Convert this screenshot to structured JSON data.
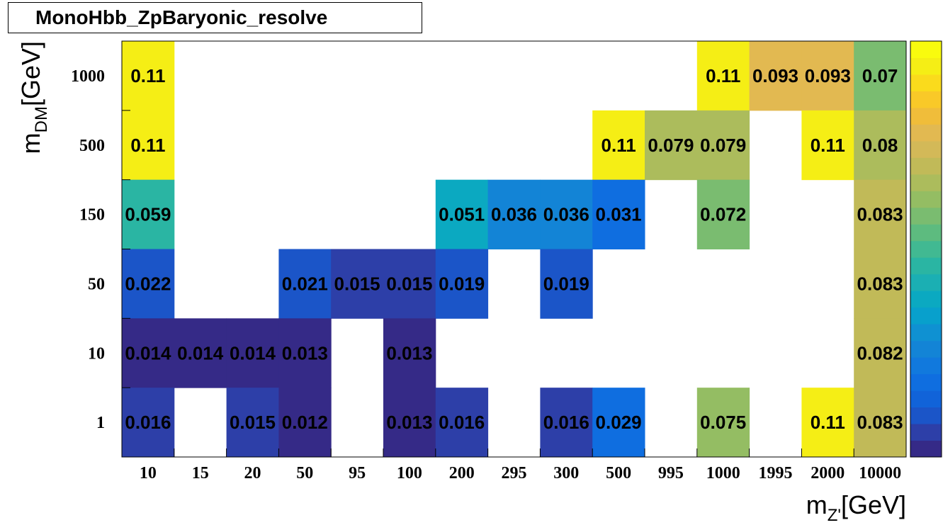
{
  "title": "MonoHbb_ZpBaryonic_resolve",
  "chart_data": {
    "type": "heatmap",
    "title": "MonoHbb_ZpBaryonic_resolve",
    "xlabel": {
      "main": "m",
      "sub": "Z'",
      "unit": "[GeV]"
    },
    "ylabel": {
      "main": "m",
      "sub": "DM",
      "unit": "[GeV]"
    },
    "x_categories": [
      "10",
      "15",
      "20",
      "50",
      "95",
      "100",
      "200",
      "295",
      "300",
      "500",
      "995",
      "1000",
      "1995",
      "2000",
      "10000"
    ],
    "y_categories": [
      "1",
      "10",
      "50",
      "150",
      "500",
      "1000"
    ],
    "color_range": [
      0.01,
      0.115
    ],
    "cells": [
      {
        "x": "10",
        "y": "1000",
        "value": 0.11,
        "label": "0.11"
      },
      {
        "x": "1000",
        "y": "1000",
        "value": 0.11,
        "label": "0.11"
      },
      {
        "x": "1995",
        "y": "1000",
        "value": 0.093,
        "label": "0.093"
      },
      {
        "x": "2000",
        "y": "1000",
        "value": 0.093,
        "label": "0.093"
      },
      {
        "x": "10000",
        "y": "1000",
        "value": 0.07,
        "label": "0.07"
      },
      {
        "x": "10",
        "y": "500",
        "value": 0.11,
        "label": "0.11"
      },
      {
        "x": "500",
        "y": "500",
        "value": 0.11,
        "label": "0.11"
      },
      {
        "x": "995",
        "y": "500",
        "value": 0.079,
        "label": "0.079"
      },
      {
        "x": "1000",
        "y": "500",
        "value": 0.079,
        "label": "0.079"
      },
      {
        "x": "2000",
        "y": "500",
        "value": 0.11,
        "label": "0.11"
      },
      {
        "x": "10000",
        "y": "500",
        "value": 0.08,
        "label": "0.08"
      },
      {
        "x": "10",
        "y": "150",
        "value": 0.059,
        "label": "0.059"
      },
      {
        "x": "200",
        "y": "150",
        "value": 0.051,
        "label": "0.051"
      },
      {
        "x": "295",
        "y": "150",
        "value": 0.036,
        "label": "0.036"
      },
      {
        "x": "300",
        "y": "150",
        "value": 0.036,
        "label": "0.036"
      },
      {
        "x": "500",
        "y": "150",
        "value": 0.031,
        "label": "0.031"
      },
      {
        "x": "1000",
        "y": "150",
        "value": 0.072,
        "label": "0.072"
      },
      {
        "x": "10000",
        "y": "150",
        "value": 0.083,
        "label": "0.083"
      },
      {
        "x": "10",
        "y": "50",
        "value": 0.022,
        "label": "0.022"
      },
      {
        "x": "50",
        "y": "50",
        "value": 0.021,
        "label": "0.021"
      },
      {
        "x": "95",
        "y": "50",
        "value": 0.015,
        "label": "0.015"
      },
      {
        "x": "100",
        "y": "50",
        "value": 0.015,
        "label": "0.015"
      },
      {
        "x": "200",
        "y": "50",
        "value": 0.019,
        "label": "0.019"
      },
      {
        "x": "300",
        "y": "50",
        "value": 0.019,
        "label": "0.019"
      },
      {
        "x": "10000",
        "y": "50",
        "value": 0.083,
        "label": "0.083"
      },
      {
        "x": "10",
        "y": "10",
        "value": 0.014,
        "label": "0.014"
      },
      {
        "x": "15",
        "y": "10",
        "value": 0.014,
        "label": "0.014"
      },
      {
        "x": "20",
        "y": "10",
        "value": 0.014,
        "label": "0.014"
      },
      {
        "x": "50",
        "y": "10",
        "value": 0.013,
        "label": "0.013"
      },
      {
        "x": "100",
        "y": "10",
        "value": 0.013,
        "label": "0.013"
      },
      {
        "x": "10000",
        "y": "10",
        "value": 0.082,
        "label": "0.082"
      },
      {
        "x": "10",
        "y": "1",
        "value": 0.016,
        "label": "0.016"
      },
      {
        "x": "20",
        "y": "1",
        "value": 0.015,
        "label": "0.015"
      },
      {
        "x": "50",
        "y": "1",
        "value": 0.012,
        "label": "0.012"
      },
      {
        "x": "100",
        "y": "1",
        "value": 0.013,
        "label": "0.013"
      },
      {
        "x": "200",
        "y": "1",
        "value": 0.016,
        "label": "0.016"
      },
      {
        "x": "300",
        "y": "1",
        "value": 0.016,
        "label": "0.016"
      },
      {
        "x": "500",
        "y": "1",
        "value": 0.029,
        "label": "0.029"
      },
      {
        "x": "1000",
        "y": "1",
        "value": 0.075,
        "label": "0.075"
      },
      {
        "x": "2000",
        "y": "1",
        "value": 0.11,
        "label": "0.11"
      },
      {
        "x": "10000",
        "y": "1",
        "value": 0.083,
        "label": "0.083"
      }
    ],
    "palette": [
      "#352a87",
      "#2d3fa8",
      "#1b55c8",
      "#1163d9",
      "#0f6ee0",
      "#1179dd",
      "#1384d6",
      "#0f91d2",
      "#08a0cc",
      "#0ba9c1",
      "#1bafb3",
      "#2ab5a3",
      "#41b992",
      "#5dbb7f",
      "#7abc70",
      "#94bd63",
      "#acbc5c",
      "#c1ba58",
      "#d3b958",
      "#e2b951",
      "#f0bd3a",
      "#f9c928",
      "#fadb1c",
      "#f5ee15",
      "#f9fb0e"
    ]
  }
}
